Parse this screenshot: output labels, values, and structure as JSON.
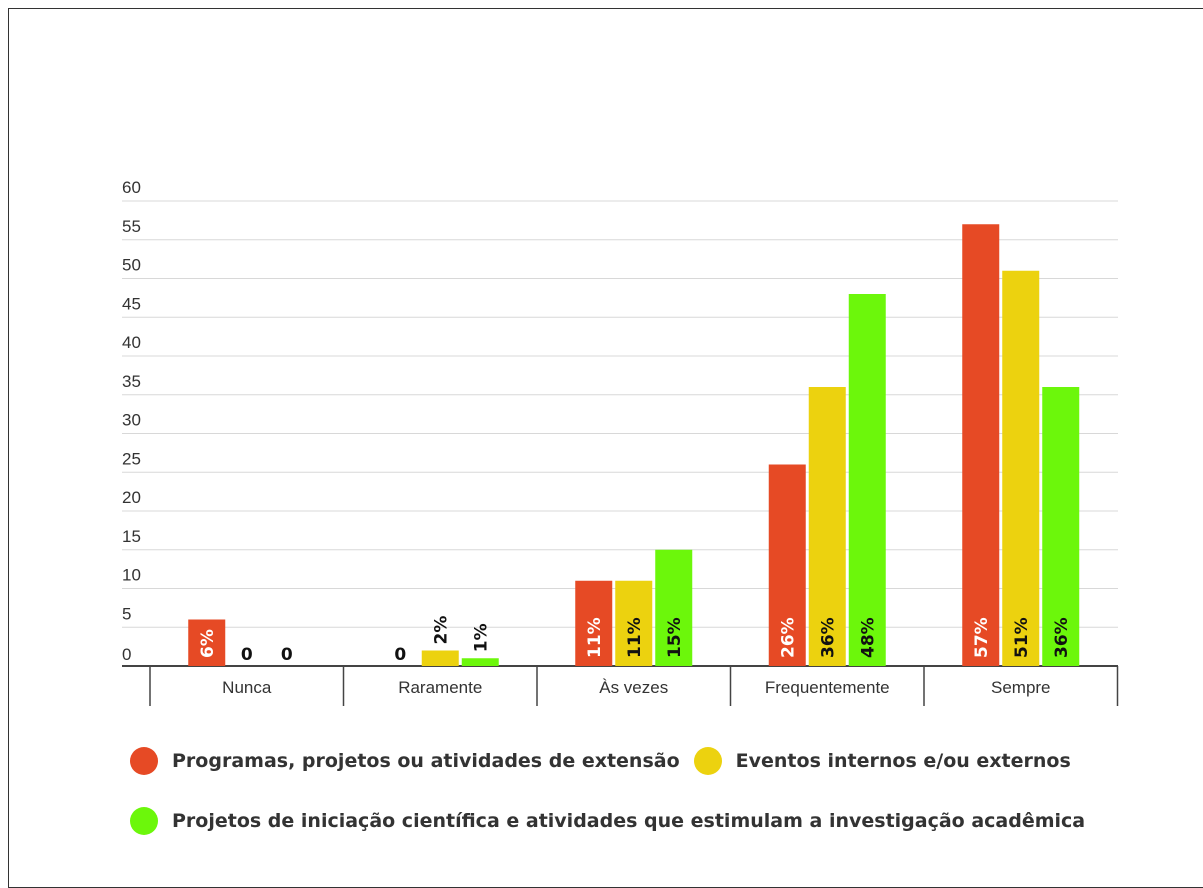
{
  "chart_data": {
    "type": "bar",
    "categories": [
      "Nunca",
      "Raramente",
      "Às vezes",
      "Frequentemente",
      "Sempre"
    ],
    "series": [
      {
        "name": "Programas, projetos ou atividades de extensão",
        "color": "#e64a25",
        "values": [
          6,
          0,
          11,
          26,
          57
        ],
        "labels": [
          "6%",
          "0",
          "11%",
          "26%",
          "57%"
        ]
      },
      {
        "name": "Eventos internos e/ou externos",
        "color": "#ecd20f",
        "values": [
          0,
          2,
          11,
          36,
          51
        ],
        "labels": [
          "0",
          "2%",
          "11%",
          "36%",
          "51%"
        ]
      },
      {
        "name": "Projetos de iniciação científica e atividades que estimulam a investigação acadêmica",
        "color": "#6cf70b",
        "values": [
          0,
          1,
          15,
          48,
          36
        ],
        "labels": [
          "0",
          "1%",
          "15%",
          "48%",
          "36%"
        ]
      }
    ],
    "yticks": [
      0,
      5,
      10,
      15,
      20,
      25,
      30,
      35,
      40,
      45,
      50,
      55,
      60
    ],
    "ylim": [
      0,
      60
    ],
    "grid": true,
    "legend_position": "bottom"
  }
}
